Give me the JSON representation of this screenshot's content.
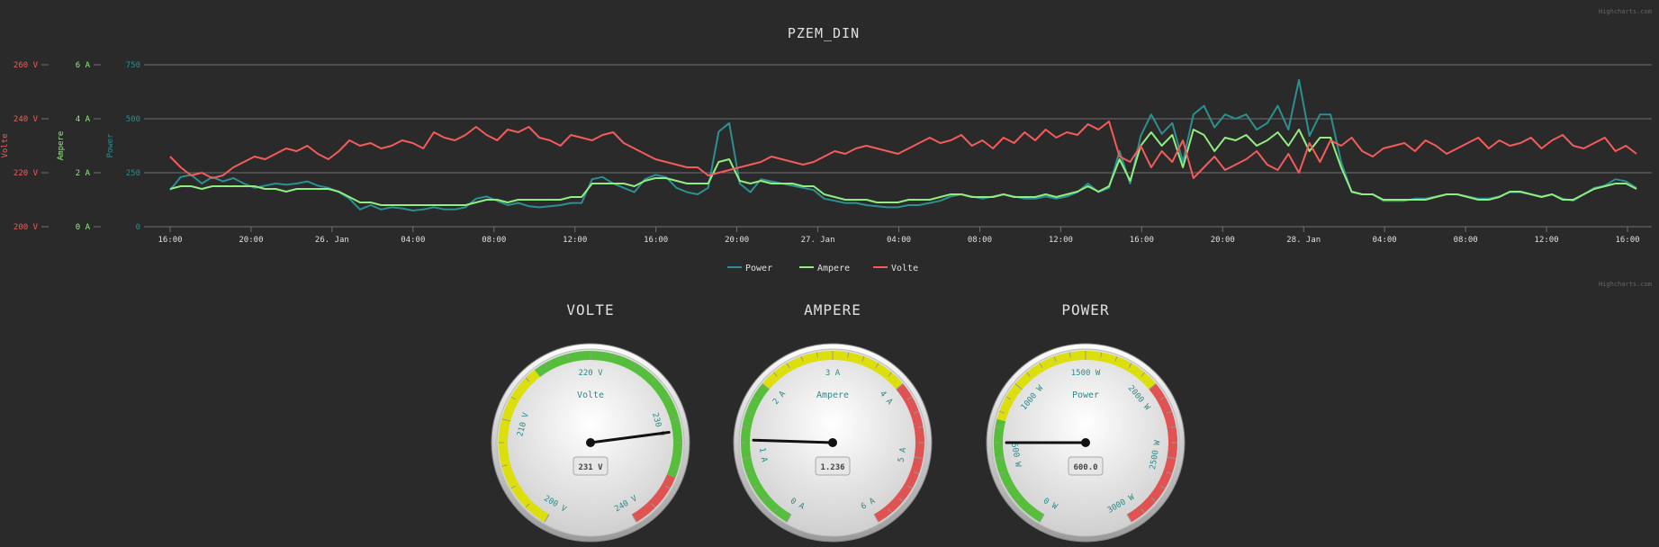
{
  "credits": "Highcharts.com",
  "colors": {
    "power": "#2b908f",
    "ampere": "#90ee7e",
    "volte": "#f45b5b",
    "background": "#2a2a2b",
    "grid": "#707073"
  },
  "chart_data": [
    {
      "type": "line",
      "title": "PZEM_DIN",
      "legend_position": "bottom-center",
      "grid": true,
      "x_tick_labels": [
        "16:00",
        "20:00",
        "26. Jan",
        "04:00",
        "08:00",
        "12:00",
        "16:00",
        "20:00",
        "27. Jan",
        "04:00",
        "08:00",
        "12:00",
        "16:00",
        "20:00",
        "28. Jan",
        "04:00",
        "08:00",
        "12:00",
        "16:00"
      ],
      "y_axes": [
        {
          "title": "Volte",
          "unit": "V",
          "ylim": [
            200,
            260
          ],
          "tick_labels": [
            "200 V",
            "220 V",
            "240 V",
            "260 V"
          ],
          "color": "#f45b5b"
        },
        {
          "title": "Ampere",
          "unit": "A",
          "ylim": [
            0,
            6
          ],
          "tick_labels": [
            "0 A",
            "2 A",
            "4 A",
            "6 A"
          ],
          "color": "#90ee7e"
        },
        {
          "title": "Power",
          "unit": "W",
          "ylim": [
            0,
            750
          ],
          "tick_labels": [
            "0",
            "250",
            "500",
            "750"
          ],
          "color": "#2b908f"
        }
      ],
      "series": [
        {
          "name": "Power",
          "axis": 2,
          "color": "#2b908f",
          "values": [
            170,
            230,
            240,
            200,
            230,
            210,
            225,
            200,
            180,
            190,
            200,
            195,
            200,
            210,
            190,
            180,
            160,
            130,
            80,
            100,
            80,
            90,
            85,
            75,
            80,
            90,
            80,
            80,
            90,
            130,
            140,
            120,
            100,
            110,
            95,
            90,
            95,
            100,
            110,
            110,
            220,
            230,
            200,
            180,
            160,
            220,
            240,
            230,
            180,
            160,
            150,
            180,
            440,
            480,
            200,
            160,
            220,
            210,
            200,
            190,
            180,
            170,
            130,
            120,
            110,
            110,
            100,
            95,
            90,
            90,
            100,
            100,
            110,
            120,
            140,
            150,
            140,
            130,
            140,
            150,
            140,
            130,
            130,
            140,
            130,
            140,
            160,
            200,
            160,
            180,
            350,
            200,
            420,
            520,
            430,
            480,
            300,
            520,
            560,
            460,
            520,
            500,
            520,
            450,
            480,
            560,
            450,
            680,
            420,
            520,
            520,
            300,
            160,
            150,
            150,
            120,
            120,
            120,
            130,
            130,
            140,
            150,
            150,
            140,
            130,
            130,
            140,
            160,
            160,
            150,
            140,
            150,
            130,
            120,
            150,
            180,
            190,
            220,
            210,
            180
          ]
        },
        {
          "name": "Ampere",
          "axis": 1,
          "color": "#90ee7e",
          "values": [
            1.4,
            1.5,
            1.5,
            1.4,
            1.5,
            1.5,
            1.5,
            1.5,
            1.5,
            1.4,
            1.4,
            1.3,
            1.4,
            1.4,
            1.4,
            1.4,
            1.3,
            1.1,
            0.9,
            0.9,
            0.8,
            0.8,
            0.8,
            0.8,
            0.8,
            0.8,
            0.8,
            0.8,
            0.8,
            0.9,
            1.0,
            1.0,
            0.9,
            1.0,
            1.0,
            1.0,
            1.0,
            1.0,
            1.1,
            1.1,
            1.6,
            1.6,
            1.6,
            1.6,
            1.5,
            1.7,
            1.8,
            1.8,
            1.7,
            1.6,
            1.6,
            1.6,
            2.4,
            2.5,
            1.7,
            1.6,
            1.7,
            1.6,
            1.6,
            1.6,
            1.5,
            1.5,
            1.2,
            1.1,
            1.0,
            1.0,
            1.0,
            0.9,
            0.9,
            0.9,
            1.0,
            1.0,
            1.0,
            1.1,
            1.2,
            1.2,
            1.1,
            1.1,
            1.1,
            1.2,
            1.1,
            1.1,
            1.1,
            1.2,
            1.1,
            1.2,
            1.3,
            1.5,
            1.3,
            1.5,
            2.5,
            1.7,
            3.0,
            3.5,
            3.0,
            3.4,
            2.2,
            3.6,
            3.4,
            2.8,
            3.3,
            3.2,
            3.4,
            3.0,
            3.2,
            3.5,
            3.0,
            3.6,
            2.8,
            3.3,
            3.3,
            2.2,
            1.3,
            1.2,
            1.2,
            1.0,
            1.0,
            1.0,
            1.0,
            1.0,
            1.1,
            1.2,
            1.2,
            1.1,
            1.0,
            1.0,
            1.1,
            1.3,
            1.3,
            1.2,
            1.1,
            1.2,
            1.0,
            1.0,
            1.2,
            1.4,
            1.5,
            1.6,
            1.6,
            1.4
          ]
        },
        {
          "name": "Volte",
          "axis": 0,
          "color": "#f45b5b",
          "values": [
            226,
            222,
            219,
            220,
            218,
            219,
            222,
            224,
            226,
            225,
            227,
            229,
            228,
            230,
            227,
            225,
            228,
            232,
            230,
            231,
            229,
            230,
            232,
            231,
            229,
            235,
            233,
            232,
            234,
            237,
            234,
            232,
            236,
            235,
            237,
            233,
            232,
            230,
            234,
            233,
            232,
            234,
            235,
            231,
            229,
            227,
            225,
            224,
            223,
            222,
            222,
            219,
            220,
            221,
            222,
            223,
            224,
            226,
            225,
            224,
            223,
            224,
            226,
            228,
            227,
            229,
            230,
            229,
            228,
            227,
            229,
            231,
            233,
            231,
            232,
            234,
            230,
            232,
            229,
            233,
            231,
            235,
            232,
            236,
            233,
            235,
            234,
            238,
            236,
            239,
            226,
            224,
            230,
            222,
            228,
            224,
            232,
            218,
            222,
            226,
            221,
            223,
            225,
            228,
            223,
            221,
            227,
            220,
            231,
            224,
            232,
            230,
            233,
            228,
            226,
            229,
            230,
            231,
            228,
            232,
            230,
            227,
            229,
            231,
            233,
            229,
            232,
            230,
            231,
            233,
            229,
            232,
            234,
            230,
            229,
            231,
            233,
            228,
            230,
            227
          ]
        }
      ]
    },
    {
      "type": "gauge",
      "title": "VOLTE",
      "center_label": "Volte",
      "value": 231,
      "value_text": "231 V",
      "min": 200,
      "max": 240,
      "tick_labels": [
        "200 V",
        "210 V",
        "220 V",
        "230 V",
        "240 V"
      ],
      "bands": [
        {
          "from": 200,
          "to": 215,
          "color": "#dddf0d"
        },
        {
          "from": 215,
          "to": 235,
          "color": "#55bf3b"
        },
        {
          "from": 235,
          "to": 240,
          "color": "#df5353"
        }
      ]
    },
    {
      "type": "gauge",
      "title": "AMPERE",
      "center_label": "Ampere",
      "value": 1.236,
      "value_text": "1.236",
      "min": 0,
      "max": 6,
      "tick_labels": [
        "0 A",
        "1 A",
        "2 A",
        "3 A",
        "4 A",
        "5 A",
        "6 A"
      ],
      "bands": [
        {
          "from": 0,
          "to": 2,
          "color": "#55bf3b"
        },
        {
          "from": 2,
          "to": 4,
          "color": "#dddf0d"
        },
        {
          "from": 4,
          "to": 6,
          "color": "#df5353"
        }
      ]
    },
    {
      "type": "gauge",
      "title": "POWER",
      "center_label": "Power",
      "value": 600,
      "value_text": "600.0",
      "min": 0,
      "max": 3000,
      "tick_labels": [
        "0 W",
        "500 W",
        "1000 W",
        "1500 W",
        "2000 W",
        "2500 W",
        "3000 W"
      ],
      "bands": [
        {
          "from": 0,
          "to": 750,
          "color": "#55bf3b"
        },
        {
          "from": 750,
          "to": 2000,
          "color": "#dddf0d"
        },
        {
          "from": 2000,
          "to": 3000,
          "color": "#df5353"
        }
      ]
    }
  ]
}
